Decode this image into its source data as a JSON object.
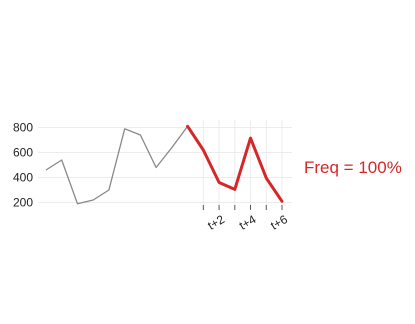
{
  "chart_data": {
    "type": "line",
    "title": "",
    "xlabel": "",
    "ylabel": "",
    "ylim": [
      150,
      850
    ],
    "yticks": [
      200,
      400,
      600,
      800
    ],
    "x_total": 16,
    "series": [
      {
        "role": "history",
        "color": "#888888",
        "x": [
          0,
          1,
          2,
          3,
          4,
          5,
          6,
          7,
          8,
          9
        ],
        "values": [
          460,
          540,
          190,
          220,
          300,
          790,
          740,
          480,
          640,
          810
        ]
      },
      {
        "role": "forecast",
        "color": "#d62728",
        "x": [
          9,
          10,
          11,
          12,
          13,
          14,
          15
        ],
        "values": [
          810,
          620,
          360,
          305,
          715,
          395,
          210
        ]
      }
    ],
    "xtick_labels": [
      {
        "x": 11,
        "label": "t+2"
      },
      {
        "x": 13,
        "label": "t+4"
      },
      {
        "x": 15,
        "label": "t+6"
      }
    ],
    "forecast_grid_x": [
      10,
      11,
      12,
      13,
      14,
      15
    ],
    "annotation": {
      "text": "Freq = 100%",
      "color": "#d62728"
    },
    "grid": true
  }
}
